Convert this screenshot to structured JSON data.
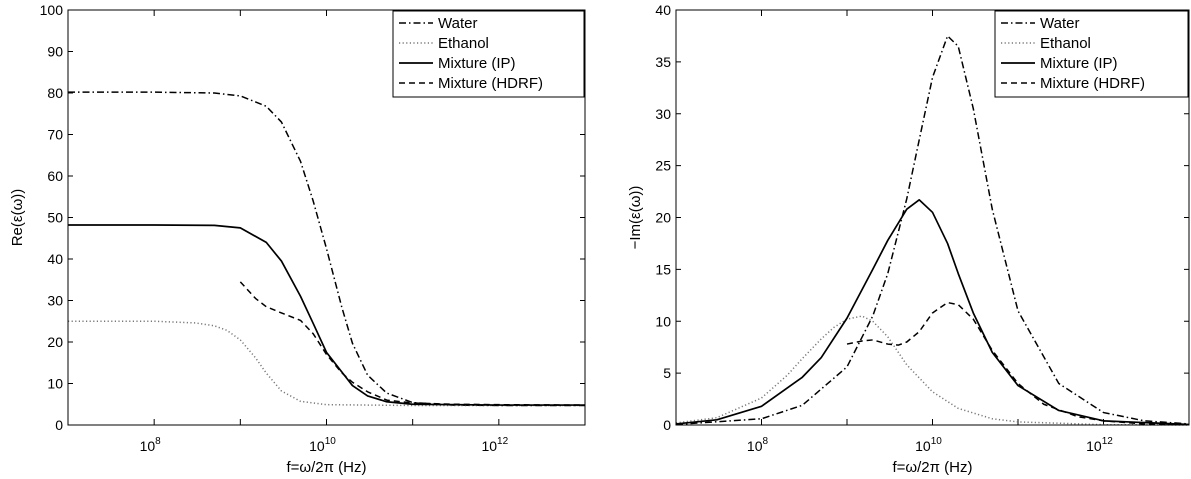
{
  "chart_data": [
    {
      "type": "line",
      "title": "",
      "xlabel": "f=ω/2π (Hz)",
      "ylabel": "Re(ε(ω))",
      "x_scale": "log",
      "xlim": [
        10000000,
        10000000000000
      ],
      "ylim": [
        0,
        100
      ],
      "x_ticks": [
        {
          "value": 100000000,
          "base": "10",
          "exp": "8"
        },
        {
          "value": 10000000000,
          "base": "10",
          "exp": "10"
        },
        {
          "value": 1000000000000,
          "base": "10",
          "exp": "12"
        }
      ],
      "y_ticks": [
        "0",
        "10",
        "20",
        "30",
        "40",
        "50",
        "60",
        "70",
        "80",
        "90",
        "100"
      ],
      "legend_position": "top-right",
      "series": [
        {
          "name": "Water",
          "style": "dashdot",
          "x": [
            10000000.0,
            100000000.0,
            500000000.0,
            1000000000.0,
            2000000000.0,
            3000000000.0,
            5000000000.0,
            7000000000.0,
            10000000000.0,
            15000000000.0,
            20000000000.0,
            30000000000.0,
            50000000000.0,
            100000000000.0,
            300000000000.0,
            1000000000000.0,
            10000000000000.0
          ],
          "y": [
            80.2,
            80.2,
            80.0,
            79.3,
            76.8,
            73.0,
            63.5,
            54.0,
            42.5,
            28.5,
            19.7,
            12.0,
            7.7,
            5.4,
            4.8,
            4.7,
            4.7
          ]
        },
        {
          "name": "Ethanol",
          "style": "dotted",
          "x": [
            10000000.0,
            100000000.0,
            300000000.0,
            500000000.0,
            700000000.0,
            1000000000.0,
            1500000000.0,
            2000000000.0,
            3000000000.0,
            5000000000.0,
            10000000000.0,
            100000000000.0,
            10000000000000.0
          ],
          "y": [
            25.0,
            25.0,
            24.6,
            23.9,
            22.8,
            20.5,
            16.2,
            12.5,
            8.2,
            5.7,
            4.9,
            4.7,
            4.7
          ]
        },
        {
          "name": "Mixture (IP)",
          "style": "solid",
          "x": [
            10000000.0,
            100000000.0,
            500000000.0,
            1000000000.0,
            2000000000.0,
            3000000000.0,
            5000000000.0,
            7000000000.0,
            10000000000.0,
            20000000000.0,
            30000000000.0,
            50000000000.0,
            100000000000.0,
            1000000000000.0,
            10000000000000.0
          ],
          "y": [
            48.2,
            48.2,
            48.1,
            47.5,
            44.0,
            39.5,
            31.0,
            24.5,
            17.5,
            9.5,
            7.0,
            5.6,
            5.0,
            4.8,
            4.8
          ]
        },
        {
          "name": "Mixture (HDRF)",
          "style": "dashed",
          "x": [
            1000000000.0,
            1500000000.0,
            2000000000.0,
            3000000000.0,
            5000000000.0,
            7000000000.0,
            10000000000.0,
            15000000000.0,
            20000000000.0,
            30000000000.0,
            50000000000.0,
            100000000000.0,
            300000000000.0,
            1000000000000.0,
            10000000000000.0
          ],
          "y": [
            34.5,
            30.5,
            28.5,
            27.0,
            25.2,
            22.0,
            17.0,
            12.6,
            10.3,
            8.0,
            6.0,
            5.3,
            5.0,
            4.9,
            4.8
          ]
        }
      ]
    },
    {
      "type": "line",
      "title": "",
      "xlabel": "f=ω/2π (Hz)",
      "ylabel": "−Im(ε(ω))",
      "x_scale": "log",
      "xlim": [
        10000000,
        10000000000000
      ],
      "ylim": [
        0,
        40
      ],
      "x_ticks": [
        {
          "value": 100000000,
          "base": "10",
          "exp": "8"
        },
        {
          "value": 10000000000,
          "base": "10",
          "exp": "10"
        },
        {
          "value": 1000000000000,
          "base": "10",
          "exp": "12"
        }
      ],
      "y_ticks": [
        "0",
        "5",
        "10",
        "15",
        "20",
        "25",
        "30",
        "35",
        "40"
      ],
      "legend_position": "top-right",
      "series": [
        {
          "name": "Water",
          "style": "dashdot",
          "x": [
            10000000.0,
            100000000.0,
            300000000.0,
            1000000000.0,
            2000000000.0,
            3000000000.0,
            5000000000.0,
            7000000000.0,
            10000000000.0,
            15000000000.0,
            20000000000.0,
            30000000000.0,
            50000000000.0,
            100000000000.0,
            300000000000.0,
            1000000000000.0,
            3000000000000.0,
            10000000000000.0
          ],
          "y": [
            0.05,
            0.6,
            1.9,
            5.6,
            10.5,
            14.6,
            21.8,
            27.5,
            33.5,
            37.5,
            36.5,
            30.5,
            20.8,
            11.0,
            4.0,
            1.2,
            0.4,
            0.1
          ]
        },
        {
          "name": "Ethanol",
          "style": "dotted",
          "x": [
            10000000.0,
            30000000.0,
            100000000.0,
            200000000.0,
            300000000.0,
            500000000.0,
            700000000.0,
            1000000000.0,
            1500000000.0,
            2000000000.0,
            3000000000.0,
            5000000000.0,
            10000000000.0,
            20000000000.0,
            50000000000.0,
            100000000000.0,
            1000000000000.0,
            10000000000000.0
          ],
          "y": [
            0.2,
            0.7,
            2.6,
            4.8,
            6.4,
            8.3,
            9.4,
            10.2,
            10.5,
            10.0,
            8.5,
            5.8,
            3.2,
            1.6,
            0.6,
            0.3,
            0.03,
            0.0
          ]
        },
        {
          "name": "Mixture (IP)",
          "style": "solid",
          "x": [
            10000000.0,
            30000000.0,
            100000000.0,
            300000000.0,
            500000000.0,
            1000000000.0,
            2000000000.0,
            3000000000.0,
            5000000000.0,
            7000000000.0,
            10000000000.0,
            15000000000.0,
            20000000000.0,
            30000000000.0,
            50000000000.0,
            100000000000.0,
            300000000000.0,
            1000000000000.0,
            10000000000000.0
          ],
          "y": [
            0.1,
            0.5,
            1.8,
            4.6,
            6.5,
            10.3,
            15.0,
            17.8,
            20.8,
            21.7,
            20.5,
            17.5,
            14.6,
            10.8,
            7.0,
            3.8,
            1.4,
            0.4,
            0.05
          ]
        },
        {
          "name": "Mixture (HDRF)",
          "style": "dashed",
          "x": [
            1000000000.0,
            1500000000.0,
            2000000000.0,
            3000000000.0,
            4000000000.0,
            5000000000.0,
            7000000000.0,
            10000000000.0,
            15000000000.0,
            20000000000.0,
            30000000000.0,
            50000000000.0,
            100000000000.0,
            200000000000.0,
            500000000000.0,
            1000000000000.0,
            3000000000000.0,
            10000000000000.0
          ],
          "y": [
            7.8,
            8.1,
            8.2,
            7.8,
            7.7,
            8.0,
            9.0,
            10.8,
            11.8,
            11.6,
            10.2,
            7.2,
            4.0,
            2.0,
            0.8,
            0.4,
            0.1,
            0.03
          ]
        }
      ]
    }
  ]
}
